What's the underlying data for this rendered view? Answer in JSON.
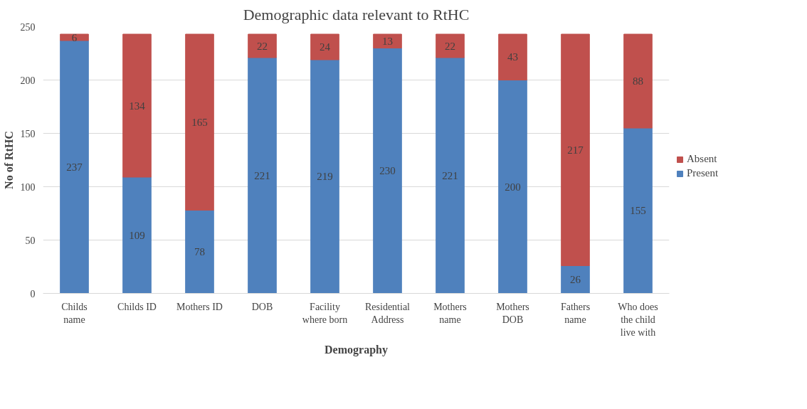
{
  "chart_data": {
    "type": "bar",
    "stacked": true,
    "title": "Demographic data relevant to RtHC",
    "xlabel": "Demography",
    "ylabel": "No of RtHC",
    "categories": [
      "Childs\nname",
      "Childs ID",
      "Mothers ID",
      "DOB",
      "Facility\nwhere born",
      "Residential\nAddress",
      "Mothers\nname",
      "Mothers\nDOB",
      "Fathers\nname",
      "Who does\nthe child\nlive with"
    ],
    "series": [
      {
        "name": "Present",
        "color": "#4f81bd",
        "values": [
          237,
          109,
          78,
          221,
          219,
          230,
          221,
          200,
          26,
          155
        ]
      },
      {
        "name": "Absent",
        "color": "#c0504d",
        "values": [
          6,
          134,
          165,
          22,
          24,
          13,
          22,
          43,
          217,
          88
        ]
      }
    ],
    "ylim": [
      0,
      250
    ],
    "yticks": [
      0,
      50,
      100,
      150,
      200,
      250
    ],
    "grid": "y",
    "legend": "right",
    "data_labels": true
  }
}
